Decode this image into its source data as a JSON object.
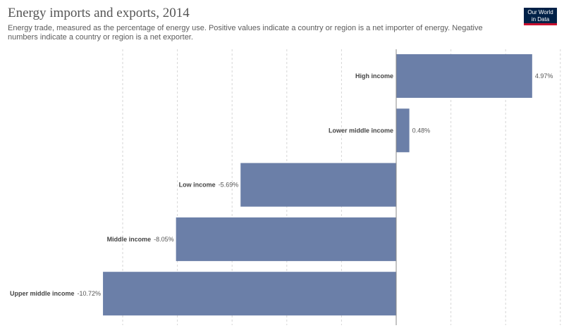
{
  "header": {
    "title": "Energy imports and exports, 2014",
    "subtitle": "Energy trade, measured as the percentage of energy use. Positive values indicate a country or region is a net importer of energy. Negative numbers indicate a country or region is a net exporter.",
    "logo_line1": "Our World",
    "logo_line2": "in Data"
  },
  "chart_data": {
    "type": "bar",
    "orientation": "horizontal",
    "categories": [
      "High income",
      "Lower middle income",
      "Low income",
      "Middle income",
      "Upper middle income"
    ],
    "values": [
      4.97,
      0.48,
      -5.69,
      -8.05,
      -10.72
    ],
    "value_labels": [
      "4.97%",
      "0.48%",
      "-5.69%",
      "-8.05%",
      "-10.72%"
    ],
    "unit": "%",
    "xlim": [
      -11,
      6
    ],
    "grid": true,
    "grid_values": [
      -10,
      -8,
      -6,
      -4,
      -2,
      2,
      4,
      6
    ],
    "bar_color": "#6b7fa8"
  }
}
